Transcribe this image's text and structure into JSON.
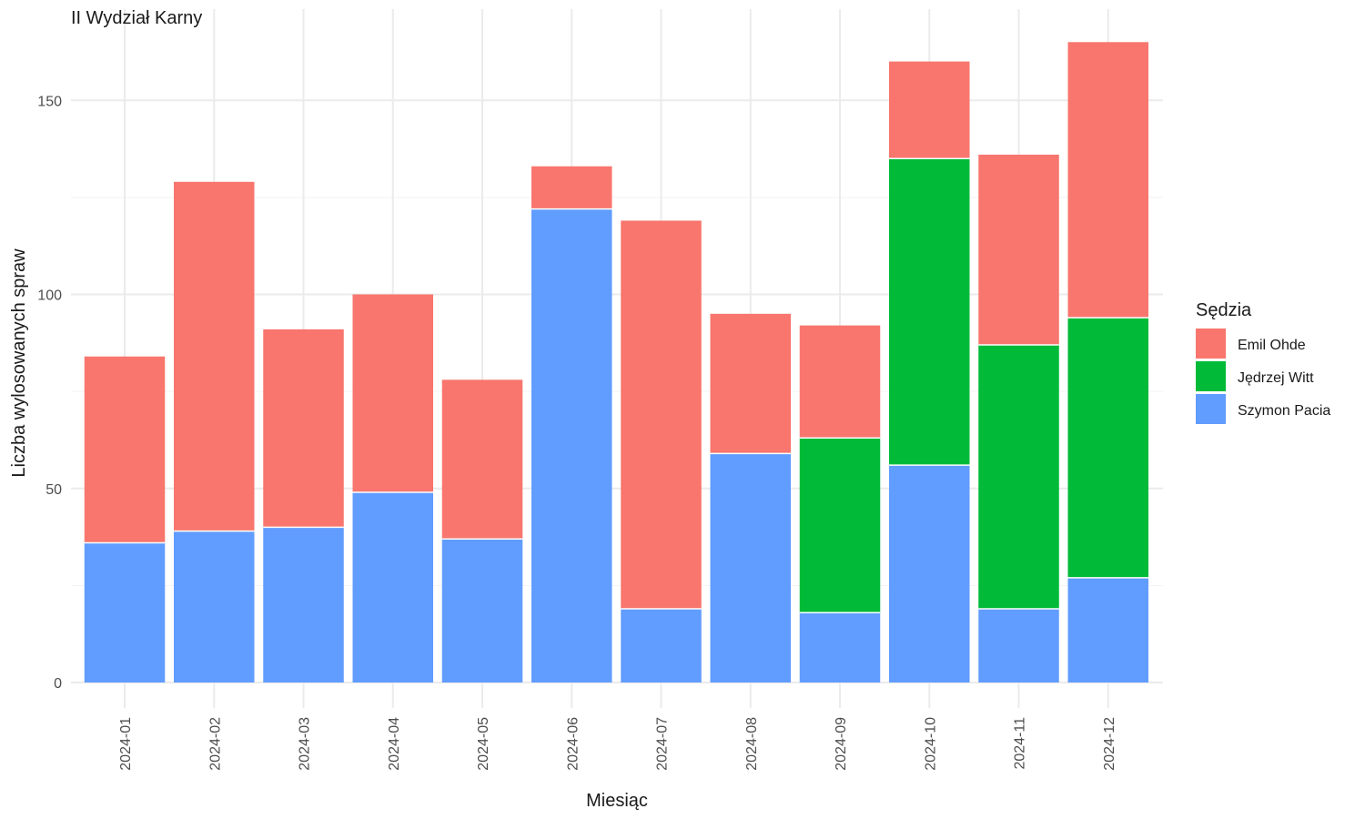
{
  "chart_data": {
    "type": "bar",
    "stacked": true,
    "title": "II Wydział Karny",
    "xlabel": "Miesiąc",
    "ylabel": "Liczba wylosowanych spraw",
    "ylim": [
      0,
      165
    ],
    "yticks": [
      0,
      50,
      100,
      150
    ],
    "grid": true,
    "legend_position": "right",
    "legend_title": "Sędzia",
    "categories": [
      "2024-01",
      "2024-02",
      "2024-03",
      "2024-04",
      "2024-05",
      "2024-06",
      "2024-07",
      "2024-08",
      "2024-09",
      "2024-10",
      "2024-11",
      "2024-12"
    ],
    "stack_order": [
      "Szymon Pacia",
      "Jędrzej Witt",
      "Emil Ohde"
    ],
    "series": [
      {
        "name": "Emil Ohde",
        "color": "#F8766D",
        "values": [
          48,
          90,
          51,
          51,
          41,
          11,
          100,
          36,
          29,
          25,
          49,
          71
        ]
      },
      {
        "name": "Jędrzej Witt",
        "color": "#00BA38",
        "values": [
          0,
          0,
          0,
          0,
          0,
          0,
          0,
          0,
          45,
          79,
          68,
          67
        ]
      },
      {
        "name": "Szymon Pacia",
        "color": "#619CFF",
        "values": [
          36,
          39,
          40,
          49,
          37,
          122,
          19,
          59,
          18,
          56,
          19,
          27
        ]
      }
    ]
  }
}
